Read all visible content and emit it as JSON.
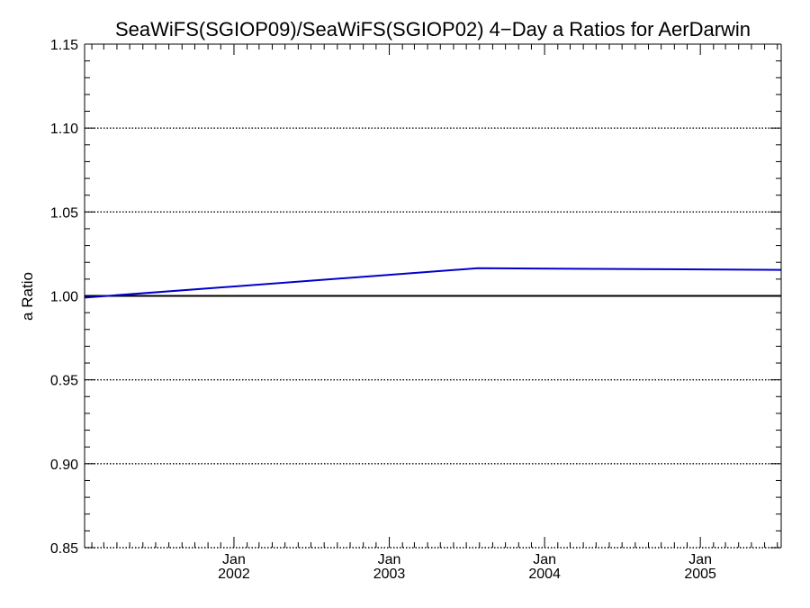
{
  "chart_data": {
    "type": "line",
    "title": "SeaWiFS(SGIOP09)/SeaWiFS(SGIOP02) 4−Day a Ratios for AerDarwin",
    "xlabel": "",
    "ylabel": "a Ratio",
    "xlim": [
      "2001-01-15",
      "2005-07-10"
    ],
    "ylim": [
      0.85,
      1.15
    ],
    "yticks": [
      0.85,
      0.9,
      0.95,
      1.0,
      1.05,
      1.1,
      1.15
    ],
    "ytick_labels": [
      "0.85",
      "0.90",
      "0.95",
      "1.00",
      "1.05",
      "1.10",
      "1.15"
    ],
    "xticks": [
      {
        "date": "2002-01-01",
        "line1": "Jan",
        "line2": "2002"
      },
      {
        "date": "2003-01-01",
        "line1": "Jan",
        "line2": "2003"
      },
      {
        "date": "2004-01-01",
        "line1": "Jan",
        "line2": "2004"
      },
      {
        "date": "2005-01-01",
        "line1": "Jan",
        "line2": "2005"
      }
    ],
    "grid": true,
    "reference_line": {
      "y": 1.0,
      "color": "#000000"
    },
    "series": [
      {
        "color": "#0000cc",
        "x": [
          "2001-01-15",
          "2003-07-28",
          "2005-07-10"
        ],
        "y": [
          0.999,
          1.0165,
          1.0155
        ]
      }
    ]
  }
}
